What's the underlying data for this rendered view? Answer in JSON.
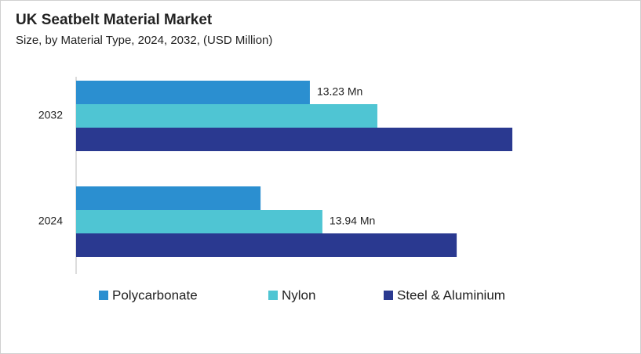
{
  "chart_data": {
    "type": "bar",
    "orientation": "horizontal",
    "title": "UK Seatbelt Material Market",
    "subtitle": "Size, by Material Type, 2024, 2032, (USD Million)",
    "categories": [
      "2032",
      "2024"
    ],
    "series": [
      {
        "name": "Polycarbonate",
        "color": "#2b8fd0",
        "values": [
          13.23,
          10.44
        ],
        "value_labels": [
          "13.23 Mn",
          null
        ]
      },
      {
        "name": "Nylon",
        "color": "#4fc5d3",
        "values": [
          17.05,
          13.94
        ],
        "value_labels": [
          null,
          "13.94 Mn"
        ]
      },
      {
        "name": "Steel & Aluminium",
        "color": "#2a3990",
        "values": [
          24.69,
          21.54
        ]
      }
    ],
    "legend": "bottom"
  }
}
